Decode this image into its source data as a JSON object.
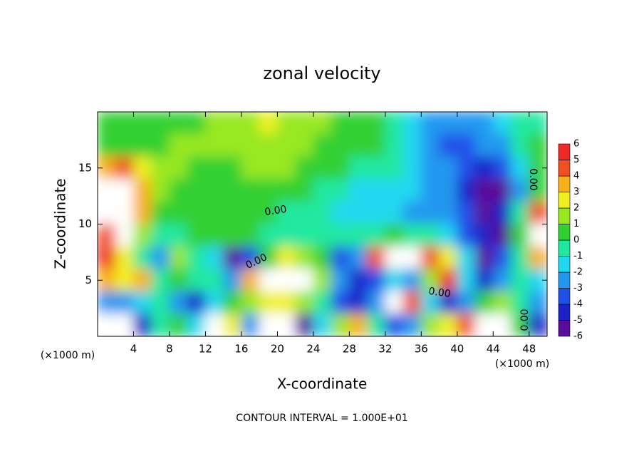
{
  "chart_data": {
    "type": "contourf",
    "title": "zonal velocity",
    "xlabel": "X-coordinate",
    "ylabel": "Z-coordinate",
    "x_unit_label": "(×1000 m)",
    "x_unit_label_right": "(×1000 m)",
    "footer": "CONTOUR INTERVAL = 1.000E+01",
    "contour_labels": [
      "0.00",
      "0.00",
      "0.00",
      "0.00",
      "0.00"
    ],
    "xlim": [
      0,
      50
    ],
    "ylim": [
      0,
      20
    ],
    "xticks": [
      4,
      8,
      12,
      16,
      20,
      24,
      28,
      32,
      36,
      40,
      44,
      48
    ],
    "yticks": [
      5,
      10,
      15
    ],
    "x": [
      1,
      3,
      5,
      7,
      9,
      11,
      13,
      15,
      17,
      19,
      21,
      23,
      25,
      27,
      29,
      31,
      33,
      35,
      37,
      39,
      41,
      43,
      45,
      47,
      49
    ],
    "z": [
      19,
      17,
      15,
      13,
      11,
      9,
      7,
      5,
      3,
      1
    ],
    "values": [
      [
        0.5,
        0.5,
        0.3,
        0.5,
        0.8,
        1,
        1.2,
        1.5,
        2,
        2.5,
        2,
        1.5,
        1.2,
        1,
        0.8,
        0.5,
        -0.5,
        -1.5,
        -2,
        -2.5,
        -2.5,
        -2,
        -1.5,
        -0.5,
        0
      ],
      [
        0.5,
        0.8,
        1,
        1,
        1.2,
        1.5,
        1.5,
        1.8,
        2,
        2,
        1.8,
        1.5,
        1,
        0.8,
        0.5,
        0.3,
        -0.5,
        -1.5,
        -2.5,
        -3,
        -3,
        -2.5,
        -2,
        -0.5,
        0.3
      ],
      [
        4,
        5,
        3,
        1.5,
        1.2,
        1,
        1,
        1,
        1.2,
        1.5,
        1.2,
        1,
        0.8,
        0.5,
        0,
        -0.3,
        -0.8,
        -1.5,
        -2,
        -2.5,
        -3,
        -4,
        -3,
        -1,
        0.5
      ],
      [
        7,
        6.5,
        4,
        2,
        1,
        0.8,
        0.8,
        0.8,
        0.7,
        0.6,
        0.5,
        0.3,
        0,
        -0.5,
        -1,
        -1.5,
        -1.5,
        -1.8,
        -2,
        -2.5,
        -4,
        -5,
        -5.5,
        -2,
        1
      ],
      [
        7,
        7,
        3.5,
        1,
        0.5,
        0.5,
        0.3,
        0.3,
        0.3,
        0.2,
        0,
        -0.3,
        -0.5,
        -1,
        -1.5,
        -1.5,
        -1.5,
        -2,
        -2,
        -2,
        -3,
        -5,
        -4,
        0,
        5
      ],
      [
        5,
        6.5,
        2,
        0,
        0,
        0.3,
        0.5,
        0.5,
        0.3,
        0,
        -0.3,
        -0.5,
        -0.5,
        -0.5,
        -0.3,
        0,
        0.5,
        0,
        -0.5,
        -1.5,
        -3,
        -4,
        -5,
        1,
        6.5
      ],
      [
        6,
        3,
        0,
        -2,
        2,
        0,
        -1,
        -5,
        -3,
        1,
        3,
        2,
        0.5,
        -3,
        -2,
        5,
        7,
        7,
        5,
        3,
        -1,
        -6,
        -3,
        0,
        4
      ],
      [
        4,
        3,
        4,
        0,
        1,
        -0.5,
        0,
        -2,
        4,
        7,
        7.5,
        7,
        2,
        -2,
        -4,
        -3,
        -1,
        -2,
        2,
        6,
        -1,
        -4,
        -2,
        0,
        -1
      ],
      [
        -2,
        -2,
        -1,
        0,
        -2,
        -4,
        -1,
        1,
        2,
        3,
        3,
        2,
        0,
        -3,
        -4,
        -2,
        7,
        5,
        -1,
        -4,
        -2,
        1,
        2,
        0,
        -2
      ],
      [
        -7,
        -7,
        -4,
        0,
        1,
        -1,
        6.5,
        3,
        -2,
        -7,
        -7,
        -5,
        -1,
        2,
        4,
        0,
        -3,
        -2,
        2,
        3,
        5,
        7,
        7,
        1,
        -4
      ]
    ],
    "levels": [
      -6,
      -5,
      -4,
      -3,
      -2,
      -1,
      0,
      1,
      2,
      3,
      4,
      5,
      6
    ],
    "colors": [
      "#5a0c9a",
      "#1a22c8",
      "#2050e8",
      "#2098f0",
      "#20d8f0",
      "#20e8a0",
      "#30d030",
      "#98e820",
      "#f0f020",
      "#f8b018",
      "#f05020",
      "#f02828"
    ],
    "top_color": "#f09898",
    "out_of_range_color": "#ffffff"
  }
}
